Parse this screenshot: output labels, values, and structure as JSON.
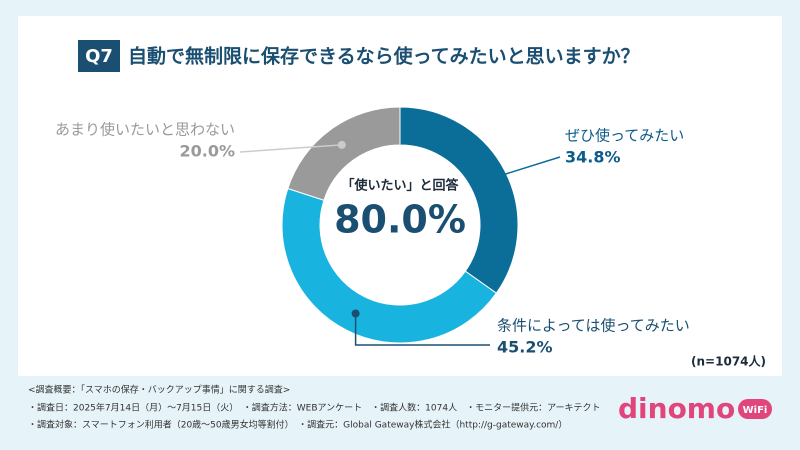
{
  "chart_data": {
    "type": "donut",
    "badge": "Q7",
    "title": "自動で無制限に保存できるなら使ってみたいと思いますか？",
    "categories": [
      "ぜひ使ってみたい",
      "条件によっては使ってみたい",
      "あまり使いたいと思わない"
    ],
    "values": [
      34.8,
      45.2,
      20.0
    ],
    "value_labels": [
      "34.8%",
      "45.2%",
      "20.0%"
    ],
    "colors": [
      "#0b6e99",
      "#19b3e0",
      "#9a9a9a"
    ],
    "center_label": "「使いたい」と回答",
    "center_value_label": "80.0%",
    "sample_note": "(n=1074人)"
  },
  "footer": {
    "notes": [
      "<調査概要：「スマホの保存・バックアップ事情」に関する調査>",
      "・調査日：2025年7月14日（月）〜7月15日（火）　・調査方法：WEBアンケート　・調査人数：1074人　・モニター提供元：アーキテクト",
      "・調査対象：スマートフォン利用者（20歳〜50歳男女均等割付）　・調査元：Global Gateway株式会社（http://g-gateway.com/）"
    ],
    "logo": "dinomo",
    "logo_badge": "WiFi"
  }
}
